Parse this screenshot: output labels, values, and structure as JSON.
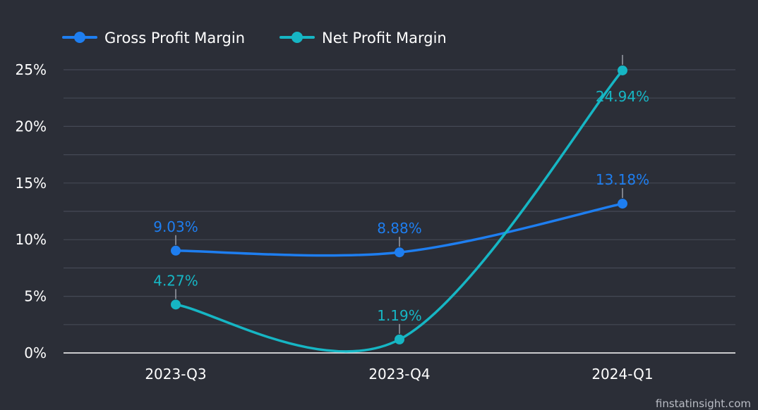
{
  "colors": {
    "background": "#2b2e37",
    "grid": "#454955",
    "axis": "#ffffff",
    "text": "#ffffff",
    "leader": "#9a9da6"
  },
  "watermark": "finstatinsight.com",
  "chart_data": {
    "type": "line",
    "categories": [
      "2023-Q3",
      "2023-Q4",
      "2024-Q1"
    ],
    "ylim": [
      0,
      25
    ],
    "yticks": [
      0,
      5,
      10,
      15,
      20,
      25
    ],
    "ytick_labels": [
      "0%",
      "5%",
      "10%",
      "15%",
      "20%",
      "25%"
    ],
    "grid": true,
    "legend_position": "top-left",
    "series": [
      {
        "name": "Gross Profit Margin",
        "color": "#1e7ef0",
        "values": [
          9.03,
          8.88,
          13.18
        ],
        "labels": [
          "9.03%",
          "8.88%",
          "13.18%"
        ]
      },
      {
        "name": "Net Profit Margin",
        "color": "#16b6c4",
        "values": [
          4.27,
          1.19,
          24.94
        ],
        "labels": [
          "4.27%",
          "1.19%",
          "24.94%"
        ]
      }
    ]
  }
}
